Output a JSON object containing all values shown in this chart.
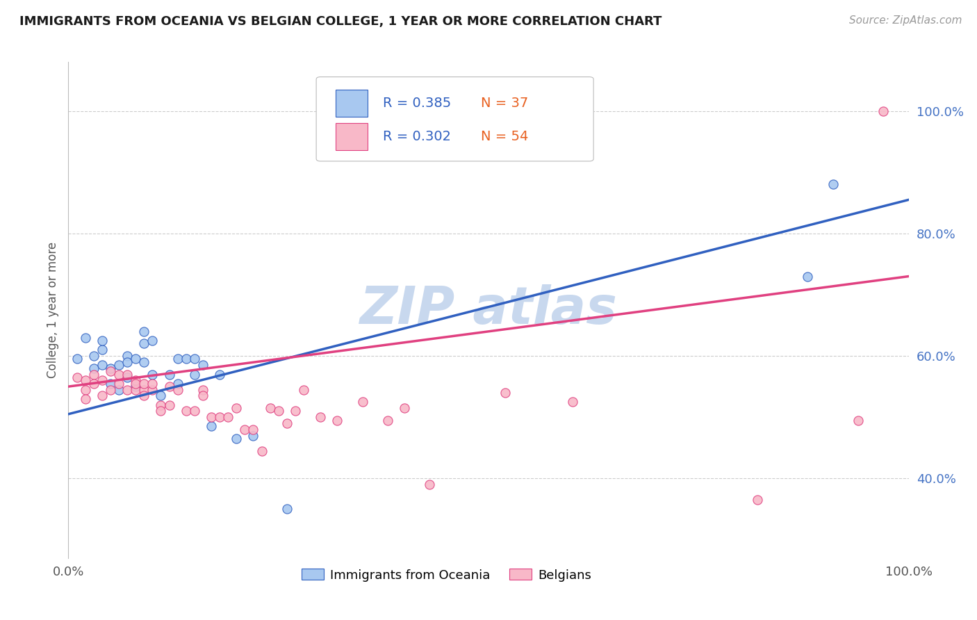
{
  "title": "IMMIGRANTS FROM OCEANIA VS BELGIAN COLLEGE, 1 YEAR OR MORE CORRELATION CHART",
  "source_text": "Source: ZipAtlas.com",
  "ylabel": "College, 1 year or more",
  "xlim": [
    0.0,
    1.0
  ],
  "ylim": [
    0.27,
    1.08
  ],
  "y_tick_positions": [
    0.4,
    0.6,
    0.8,
    1.0
  ],
  "y_tick_labels": [
    "40.0%",
    "60.0%",
    "80.0%",
    "100.0%"
  ],
  "color_blue": "#A8C8F0",
  "color_pink": "#F8B8C8",
  "line_color_blue": "#3060C0",
  "line_color_pink": "#E04080",
  "watermark_color": "#C8D8EE",
  "blue_line_start_y": 0.505,
  "blue_line_end_y": 0.855,
  "pink_line_start_y": 0.55,
  "pink_line_end_y": 0.73,
  "blue_scatter_x": [
    0.01,
    0.02,
    0.03,
    0.03,
    0.04,
    0.04,
    0.04,
    0.05,
    0.05,
    0.06,
    0.06,
    0.07,
    0.07,
    0.07,
    0.08,
    0.08,
    0.09,
    0.09,
    0.09,
    0.1,
    0.1,
    0.11,
    0.12,
    0.13,
    0.13,
    0.14,
    0.15,
    0.15,
    0.16,
    0.17,
    0.18,
    0.2,
    0.22,
    0.26,
    0.88,
    0.91
  ],
  "blue_scatter_y": [
    0.595,
    0.63,
    0.6,
    0.58,
    0.585,
    0.61,
    0.625,
    0.555,
    0.58,
    0.545,
    0.585,
    0.6,
    0.565,
    0.59,
    0.55,
    0.595,
    0.62,
    0.64,
    0.59,
    0.57,
    0.625,
    0.535,
    0.57,
    0.555,
    0.595,
    0.595,
    0.57,
    0.595,
    0.585,
    0.485,
    0.57,
    0.465,
    0.47,
    0.35,
    0.73,
    0.88
  ],
  "pink_scatter_x": [
    0.01,
    0.02,
    0.02,
    0.02,
    0.03,
    0.03,
    0.04,
    0.04,
    0.05,
    0.05,
    0.06,
    0.06,
    0.07,
    0.07,
    0.08,
    0.08,
    0.08,
    0.09,
    0.09,
    0.09,
    0.1,
    0.1,
    0.11,
    0.11,
    0.12,
    0.12,
    0.13,
    0.14,
    0.15,
    0.16,
    0.16,
    0.17,
    0.18,
    0.19,
    0.2,
    0.21,
    0.22,
    0.23,
    0.24,
    0.25,
    0.26,
    0.27,
    0.28,
    0.3,
    0.32,
    0.35,
    0.38,
    0.4,
    0.43,
    0.52,
    0.6,
    0.82,
    0.94,
    0.97
  ],
  "pink_scatter_y": [
    0.565,
    0.56,
    0.545,
    0.53,
    0.57,
    0.555,
    0.56,
    0.535,
    0.575,
    0.545,
    0.57,
    0.555,
    0.57,
    0.545,
    0.56,
    0.545,
    0.555,
    0.545,
    0.535,
    0.555,
    0.545,
    0.555,
    0.52,
    0.51,
    0.52,
    0.55,
    0.545,
    0.51,
    0.51,
    0.545,
    0.535,
    0.5,
    0.5,
    0.5,
    0.515,
    0.48,
    0.48,
    0.445,
    0.515,
    0.51,
    0.49,
    0.51,
    0.545,
    0.5,
    0.495,
    0.525,
    0.495,
    0.515,
    0.39,
    0.54,
    0.525,
    0.365,
    0.495,
    1.0
  ]
}
